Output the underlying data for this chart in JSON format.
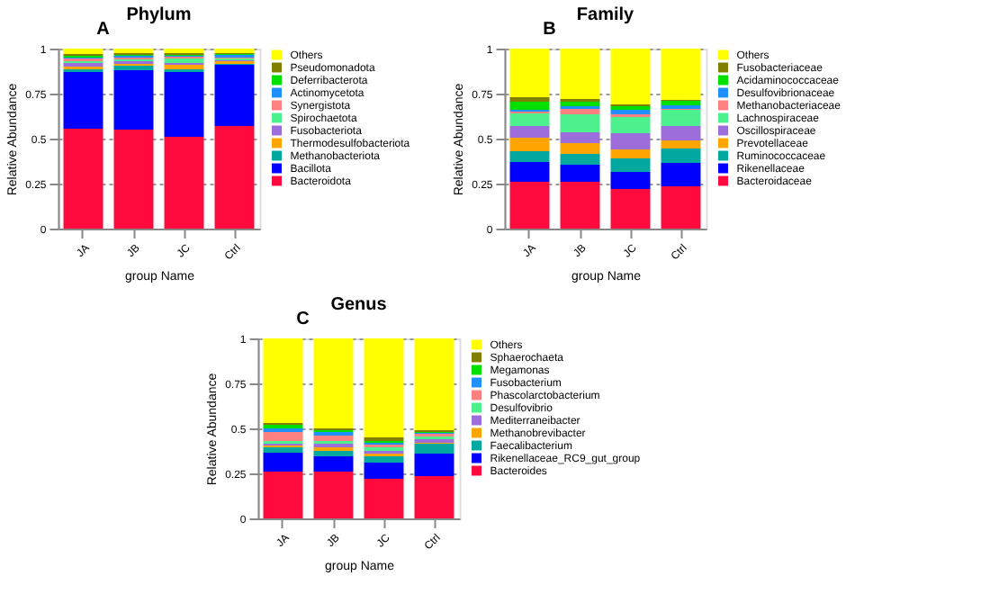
{
  "chart_data": [
    {
      "type": "bar",
      "title": "Phylum",
      "annotations": [
        "A"
      ],
      "xlabel": "group Name",
      "ylabel": "Relative Abundance",
      "categories": [
        "JA",
        "JB",
        "JC",
        "Ctrl"
      ],
      "stacked": true,
      "ylim": [
        0,
        1
      ],
      "yticks": [
        0,
        0.25,
        0.5,
        0.75,
        1
      ],
      "grid": "y",
      "legend": "right",
      "series": [
        {
          "name": "Bacteroidota",
          "color": "#ff0a3c",
          "values": [
            0.555,
            0.55,
            0.51,
            0.57
          ]
        },
        {
          "name": "Bacillota",
          "color": "#0000ff",
          "values": [
            0.315,
            0.33,
            0.36,
            0.34
          ]
        },
        {
          "name": "Methanobacteriota",
          "color": "#00a8a0",
          "values": [
            0.015,
            0.025,
            0.015,
            0.005
          ]
        },
        {
          "name": "Thermodesulfobacteriota",
          "color": "#ffa500",
          "values": [
            0.015,
            0.01,
            0.025,
            0.015
          ]
        },
        {
          "name": "Fusobacteriota",
          "color": "#9e6ddc",
          "values": [
            0.02,
            0.015,
            0.01,
            0.005
          ]
        },
        {
          "name": "Spirochaetota",
          "color": "#4cf08c",
          "values": [
            0.01,
            0.01,
            0.025,
            0.01
          ]
        },
        {
          "name": "Synergistota",
          "color": "#ff8080",
          "values": [
            0.015,
            0.01,
            0.01,
            0.005
          ]
        },
        {
          "name": "Actinomycetota",
          "color": "#1e90ff",
          "values": [
            0.005,
            0.01,
            0.005,
            0.015
          ]
        },
        {
          "name": "Deferribacterota",
          "color": "#00e000",
          "values": [
            0.01,
            0.005,
            0.005,
            0.005
          ]
        },
        {
          "name": "Pseudomonadota",
          "color": "#808000",
          "values": [
            0.01,
            0.01,
            0.01,
            0.005
          ]
        },
        {
          "name": "Others",
          "color": "#ffff00",
          "values": [
            0.03,
            0.025,
            0.025,
            0.025
          ]
        }
      ]
    },
    {
      "type": "bar",
      "title": "Family",
      "annotations": [
        "B"
      ],
      "xlabel": "group Name",
      "ylabel": "Relative Abundance",
      "categories": [
        "JA",
        "JB",
        "JC",
        "Ctrl"
      ],
      "stacked": true,
      "ylim": [
        0,
        1
      ],
      "yticks": [
        0,
        0.25,
        0.5,
        0.75,
        1
      ],
      "grid": "y",
      "legend": "right",
      "series": [
        {
          "name": "Bacteroidaceae",
          "color": "#ff0a3c",
          "values": [
            0.26,
            0.26,
            0.22,
            0.235
          ]
        },
        {
          "name": "Rikenellaceae",
          "color": "#0000ff",
          "values": [
            0.11,
            0.095,
            0.095,
            0.13
          ]
        },
        {
          "name": "Ruminococcaceae",
          "color": "#00a8a0",
          "values": [
            0.06,
            0.06,
            0.075,
            0.08
          ]
        },
        {
          "name": "Prevotellaceae",
          "color": "#ffa500",
          "values": [
            0.075,
            0.06,
            0.05,
            0.045
          ]
        },
        {
          "name": "Oscillospiraceae",
          "color": "#9e6ddc",
          "values": [
            0.065,
            0.06,
            0.09,
            0.08
          ]
        },
        {
          "name": "Lachnospiraceae",
          "color": "#4cf08c",
          "values": [
            0.07,
            0.1,
            0.09,
            0.09
          ]
        },
        {
          "name": "Methanobacteriaceae",
          "color": "#ff8080",
          "values": [
            0.01,
            0.03,
            0.015,
            0.005
          ]
        },
        {
          "name": "Desulfovibrionaceae",
          "color": "#1e90ff",
          "values": [
            0.01,
            0.015,
            0.025,
            0.02
          ]
        },
        {
          "name": "Acidaminococcaceae",
          "color": "#00e000",
          "values": [
            0.045,
            0.025,
            0.02,
            0.025
          ]
        },
        {
          "name": "Fusobacteriaceae",
          "color": "#808000",
          "values": [
            0.025,
            0.015,
            0.01,
            0.005
          ]
        },
        {
          "name": "Others",
          "color": "#ffff00",
          "values": [
            0.27,
            0.28,
            0.31,
            0.285
          ]
        }
      ]
    },
    {
      "type": "bar",
      "title": "Genus",
      "annotations": [
        "C"
      ],
      "xlabel": "group Name",
      "ylabel": "Relative Abundance",
      "categories": [
        "JA",
        "JB",
        "JC",
        "Ctrl"
      ],
      "stacked": true,
      "ylim": [
        0,
        1
      ],
      "yticks": [
        0,
        0.25,
        0.5,
        0.75,
        1
      ],
      "grid": "y",
      "legend": "right",
      "series": [
        {
          "name": "Bacteroides",
          "color": "#ff0a3c",
          "values": [
            0.26,
            0.26,
            0.22,
            0.235
          ]
        },
        {
          "name": "Rikenellaceae_RC9_gut_group",
          "color": "#0000ff",
          "values": [
            0.105,
            0.085,
            0.09,
            0.125
          ]
        },
        {
          "name": "Faecalibacterium",
          "color": "#00a8a0",
          "values": [
            0.03,
            0.03,
            0.035,
            0.055
          ]
        },
        {
          "name": "Methanobrevibacter",
          "color": "#ffa500",
          "values": [
            0.01,
            0.02,
            0.015,
            0.005
          ]
        },
        {
          "name": "Mediterraneibacter",
          "color": "#9e6ddc",
          "values": [
            0.01,
            0.02,
            0.015,
            0.02
          ]
        },
        {
          "name": "Desulfovibrio",
          "color": "#4cf08c",
          "values": [
            0.015,
            0.015,
            0.02,
            0.015
          ]
        },
        {
          "name": "Phascolarctobacterium",
          "color": "#ff8080",
          "values": [
            0.05,
            0.03,
            0.015,
            0.015
          ]
        },
        {
          "name": "Fusobacterium",
          "color": "#1e90ff",
          "values": [
            0.02,
            0.02,
            0.01,
            0.005
          ]
        },
        {
          "name": "Megamonas",
          "color": "#00e000",
          "values": [
            0.02,
            0.01,
            0.01,
            0.005
          ]
        },
        {
          "name": "Sphaerochaeta",
          "color": "#808000",
          "values": [
            0.01,
            0.01,
            0.02,
            0.01
          ]
        },
        {
          "name": "Others",
          "color": "#ffff00",
          "values": [
            0.47,
            0.5,
            0.55,
            0.51
          ]
        }
      ]
    }
  ]
}
